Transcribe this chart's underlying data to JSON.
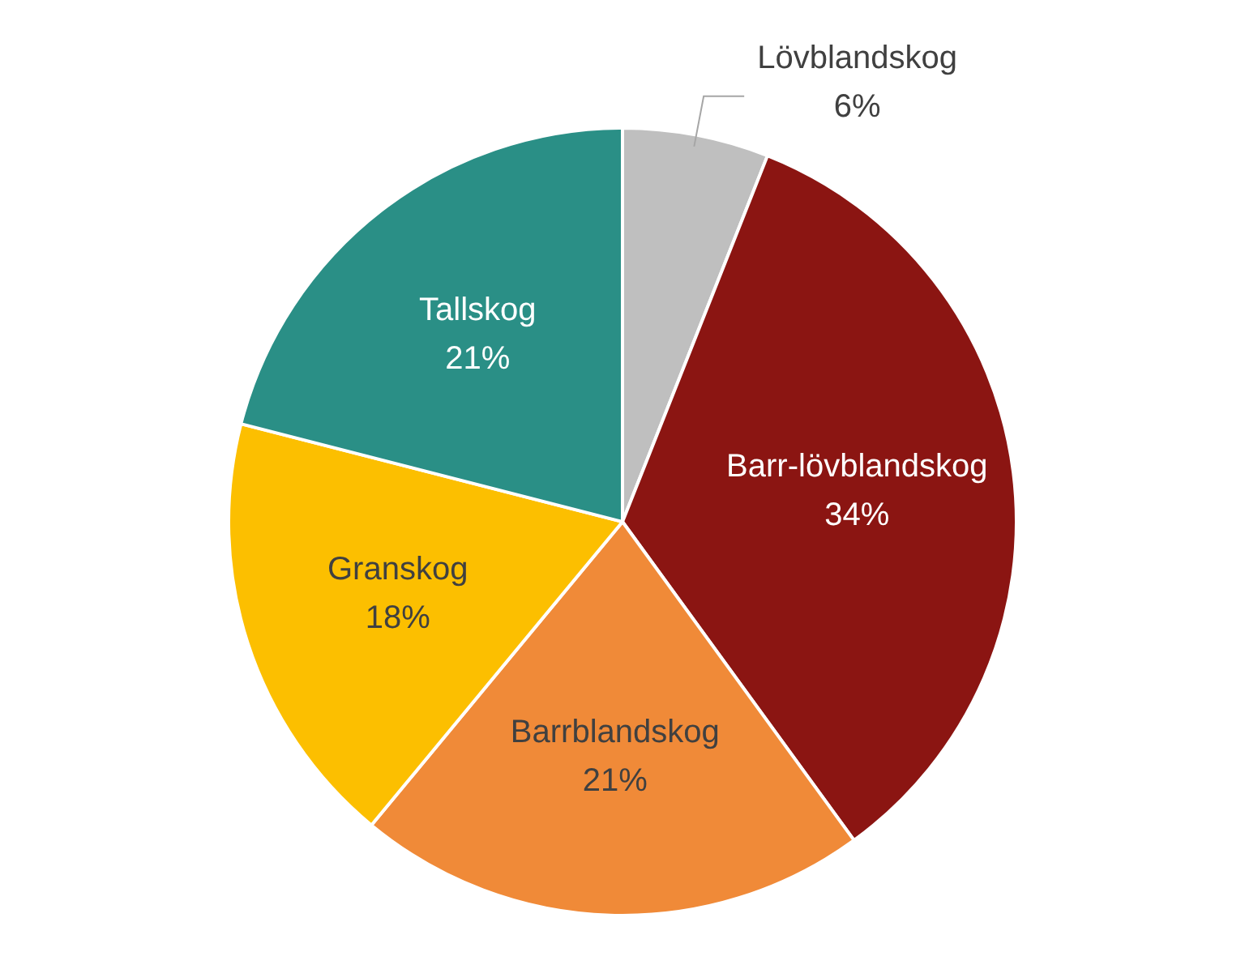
{
  "chart_data": {
    "type": "pie",
    "categories": [
      "Lövblandskog",
      "Barr-lövblandskog",
      "Barrblandskog",
      "Granskog",
      "Tallskog"
    ],
    "values": [
      6,
      34,
      21,
      18,
      21
    ],
    "value_labels": [
      "6%",
      "34%",
      "21%",
      "18%",
      "21%"
    ],
    "colors": [
      "#bfbfbf",
      "#8b1512",
      "#f08a38",
      "#fcbf00",
      "#2a8f86"
    ],
    "legend": false
  }
}
